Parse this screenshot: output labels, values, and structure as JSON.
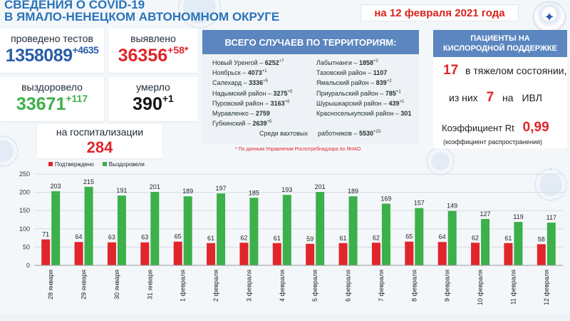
{
  "header": {
    "title_line1": "СВЕДЕНИЯ О COVID-19",
    "title_line2": "В ЯМАЛО-НЕНЕЦКОМ АВТОНОМНОМ ОКРУГЕ",
    "date": "на 12 февраля 2021 года"
  },
  "stats": {
    "tests_label": "проведено тестов",
    "tests_value": "1358089",
    "tests_inc": "+4635",
    "detected_label": "выявлено",
    "detected_value": "36356",
    "detected_inc": "+58*",
    "recovered_label": "выздоровело",
    "recovered_value": "33671",
    "recovered_inc": "+117",
    "died_label": "умерло",
    "died_value": "390",
    "died_inc": "+1",
    "hosp_label": "на госпитализации",
    "hosp_value": "284"
  },
  "territory": {
    "title": "ВСЕГО СЛУЧАЕВ ПО ТЕРРИТОРИЯМ:",
    "left": [
      {
        "name": "Новый Уренгой",
        "value": "6252",
        "inc": "+7"
      },
      {
        "name": "Ноябрьск",
        "value": "4073",
        "inc": "+1"
      },
      {
        "name": "Салехард",
        "value": "3336",
        "inc": "+5"
      },
      {
        "name": "Надымский район",
        "value": "3275",
        "inc": "+5"
      },
      {
        "name": "Пуровский район",
        "value": "3163",
        "inc": "+6"
      },
      {
        "name": "Муравленко",
        "value": "2759",
        "inc": ""
      },
      {
        "name": "Губкинский",
        "value": "2639",
        "inc": "+5"
      }
    ],
    "right": [
      {
        "name": "Лабытнанги",
        "value": "1858",
        "inc": "+2"
      },
      {
        "name": "Тазовский район",
        "value": "1107",
        "inc": ""
      },
      {
        "name": "Ямальский район",
        "value": "839",
        "inc": "+2"
      },
      {
        "name": "Приуральский район",
        "value": "785",
        "inc": "+1"
      },
      {
        "name": "Шурышкарский район",
        "value": "439",
        "inc": "+1"
      },
      {
        "name": "Красноселькупский район",
        "value": "301",
        "inc": ""
      }
    ],
    "shift_label_a": "Среди вахтовых",
    "shift_label_b": "работников",
    "shift_value": "5530",
    "shift_inc": "+23",
    "footnote": "* По данным Управления  Роспотребнадзора по ЯНАО"
  },
  "oxygen": {
    "title_line1": "ПАЦИЕНТЫ НА",
    "title_line2": "КИСЛОРОДНОЙ ПОДДЕРЖКЕ",
    "severe_value": "17",
    "severe_label": "в тяжелом состоянии,",
    "ivl_prefix": "из них",
    "ivl_value": "7",
    "ivl_mid": "на",
    "ivl_label": "ИВЛ",
    "rt_label": "Коэффициент Rt",
    "rt_value": "0,99",
    "rt_note": "(коэффициент распространения)"
  },
  "colors": {
    "confirmed": "#e0262b",
    "recovered": "#3cb04a",
    "accent_blue": "#2a73b8",
    "panel_blue": "#5b86bf"
  },
  "chart_data": {
    "type": "bar",
    "legend": [
      "Подтверждено",
      "Выздоровели"
    ],
    "categories": [
      "28 января",
      "29 января",
      "30 января",
      "31 января",
      "1 февраля",
      "2 февраля",
      "3 февраля",
      "4 февраля",
      "5 февраля",
      "6 февраля",
      "7 февраля",
      "8 февраля",
      "9 февраля",
      "10 февраля",
      "11 февраля",
      "12 февраля"
    ],
    "series": [
      {
        "name": "Подтверждено",
        "values": [
          71,
          64,
          63,
          63,
          65,
          61,
          62,
          61,
          59,
          61,
          62,
          65,
          64,
          62,
          61,
          58
        ]
      },
      {
        "name": "Выздоровели",
        "values": [
          203,
          215,
          191,
          201,
          189,
          197,
          185,
          193,
          201,
          189,
          169,
          157,
          149,
          127,
          119,
          117
        ]
      }
    ],
    "ylim": [
      0,
      250
    ],
    "yticks": [
      "0",
      "50",
      "100",
      "150",
      "200",
      "250"
    ],
    "grid": true,
    "legend_position": "top-left"
  }
}
